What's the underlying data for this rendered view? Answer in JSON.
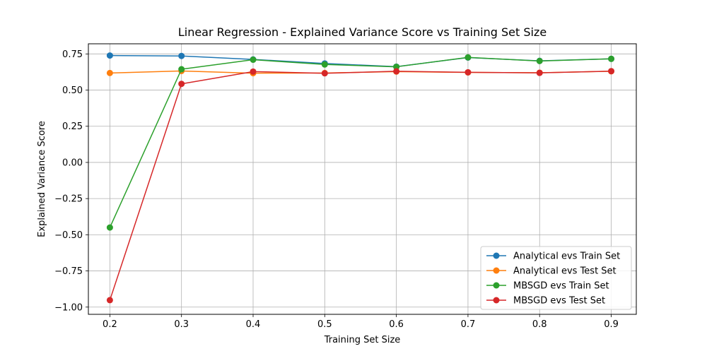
{
  "chart_data": {
    "type": "line",
    "title": "Linear Regression - Explained Variance Score vs Training Set Size",
    "xlabel": "Training Set Size",
    "ylabel": "Explained Variance Score",
    "x": [
      0.2,
      0.3,
      0.4,
      0.5,
      0.6,
      0.7,
      0.8,
      0.9
    ],
    "x_tick_labels": [
      "0.2",
      "0.3",
      "0.4",
      "0.5",
      "0.6",
      "0.7",
      "0.8",
      "0.9"
    ],
    "y_ticks": [
      0.75,
      0.5,
      0.25,
      0.0,
      -0.25,
      -0.5,
      -0.75,
      -1.0
    ],
    "y_tick_labels": [
      "0.75",
      "0.50",
      "0.25",
      "0.00",
      "−0.25",
      "−0.50",
      "−0.75",
      "−1.00"
    ],
    "xlim": [
      0.17,
      0.935
    ],
    "ylim": [
      -1.05,
      0.82
    ],
    "grid": true,
    "legend_position": "lower-right",
    "series": [
      {
        "name": "Analytical evs Train Set",
        "color": "#1f77b4",
        "values": [
          0.739,
          0.736,
          0.712,
          0.684,
          0.662,
          0.725,
          0.702,
          0.716
        ]
      },
      {
        "name": "Analytical evs Test Set",
        "color": "#ff7f0e",
        "values": [
          0.618,
          0.632,
          0.617,
          0.618,
          0.628,
          0.622,
          0.62,
          0.63
        ]
      },
      {
        "name": "MBSGD evs Train Set",
        "color": "#2ca02c",
        "values": [
          -0.45,
          0.644,
          0.71,
          0.677,
          0.661,
          0.726,
          0.701,
          0.716
        ]
      },
      {
        "name": "MBSGD evs Test Set",
        "color": "#d62728",
        "values": [
          -0.952,
          0.543,
          0.628,
          0.616,
          0.63,
          0.623,
          0.619,
          0.631
        ]
      }
    ]
  }
}
